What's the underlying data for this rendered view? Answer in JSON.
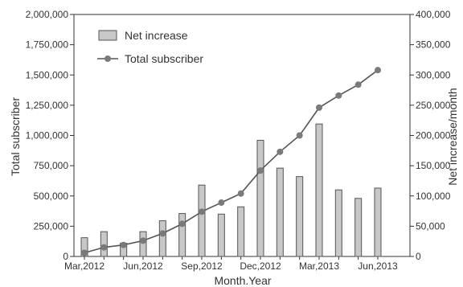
{
  "chart_data": {
    "type": "bar+line",
    "x": [
      "Mar,2012",
      "",
      "",
      "Jun,2012",
      "",
      "",
      "Sep,2012",
      "",
      "",
      "Dec,2012",
      "",
      "",
      "Mar,2013",
      "",
      "",
      "Jun,2013"
    ],
    "xticks": [
      "Mar,2012",
      "Jun,2012",
      "Sep,2012",
      "Dec,2012",
      "Mar,2013",
      "Jun,2013"
    ],
    "xlabel": "Month.Year",
    "ylabel_left": "Total subscriber",
    "ylabel_right": "Net increase/month",
    "ylim_left": [
      0,
      2000000
    ],
    "ylim_right": [
      0,
      400000
    ],
    "yticks_left": [
      "0",
      "250,000",
      "500,000",
      "750,000",
      "1,000,000",
      "1,250,000",
      "1,500,000",
      "1,750,000",
      "2,000,000"
    ],
    "yticks_right": [
      "0",
      "50,000",
      "100,000",
      "150,000",
      "200,000",
      "250,000",
      "300,000",
      "350,000",
      "400,000"
    ],
    "series": [
      {
        "name": "Net increase",
        "kind": "bar",
        "axis": "right",
        "color": "#c8c8c8",
        "values": [
          31000,
          41000,
          22000,
          41000,
          59000,
          71000,
          118000,
          70000,
          82000,
          192000,
          146000,
          132000,
          219000,
          110000,
          96000,
          113000
        ]
      },
      {
        "name": "Total subscriber",
        "kind": "line",
        "axis": "left",
        "color": "#555555",
        "values": [
          30000,
          75000,
          95000,
          130000,
          190000,
          270000,
          370000,
          445000,
          520000,
          710000,
          865000,
          1000000,
          1230000,
          1330000,
          1420000,
          1540000
        ]
      }
    ],
    "legend_position": "top-left",
    "grid": false
  }
}
